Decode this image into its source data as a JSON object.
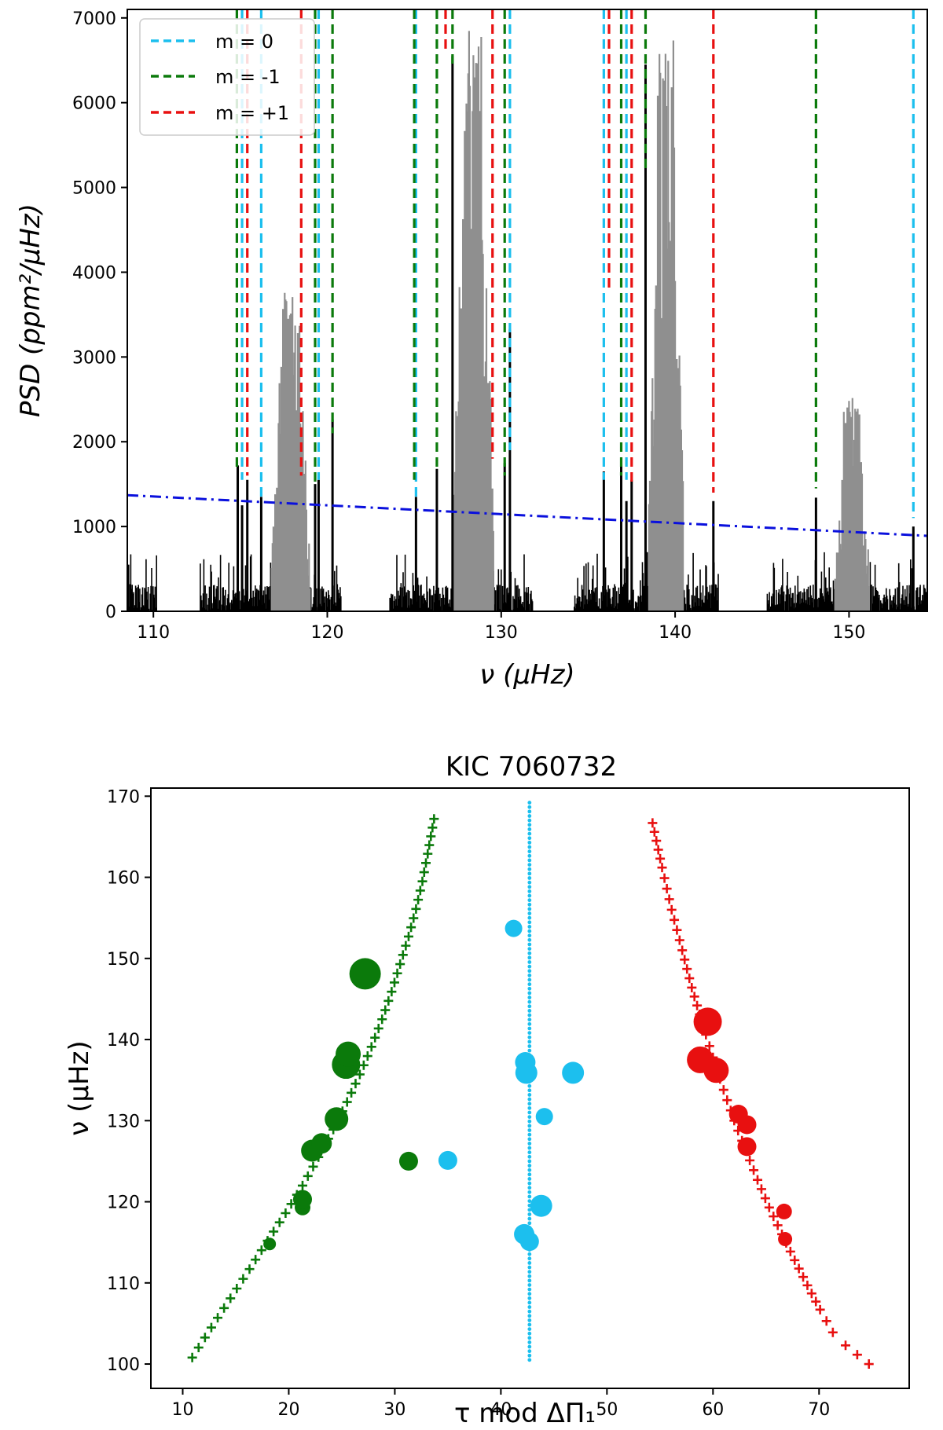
{
  "chart_data": [
    {
      "type": "line",
      "title": "",
      "xlabel": "ν (μHz)",
      "ylabel": "PSD (ppm²/μHz)",
      "xlim": [
        108.5,
        154.5
      ],
      "ylim": [
        0,
        7100
      ],
      "xticks": [
        110,
        120,
        130,
        140,
        150
      ],
      "yticks": [
        0,
        1000,
        2000,
        3000,
        4000,
        5000,
        6000,
        7000
      ],
      "legend": {
        "position": "top-left",
        "entries": [
          {
            "label": "m = 0",
            "color": "#1cbfee"
          },
          {
            "label": "m = -1",
            "color": "#0b7a0b"
          },
          {
            "label": "m = +1",
            "color": "#e81010"
          }
        ]
      },
      "threshold_line": {
        "color": "#0a10dd",
        "style": "dash-dot",
        "x": [
          108.5,
          154.5
        ],
        "y": [
          1370,
          890
        ]
      },
      "vertical_lines": {
        "m0": {
          "color": "#1cbfee",
          "x": [
            115.1,
            116.2,
            119.5,
            125.1,
            130.5,
            135.9,
            137.2,
            153.7
          ],
          "top": [
            7100,
            7100,
            7100,
            7100,
            7100,
            7100,
            7100,
            7100
          ],
          "bottom": [
            1550,
            1350,
            1550,
            1350,
            1900,
            1550,
            1550,
            1100
          ]
        },
        "m-1": {
          "color": "#0b7a0b",
          "x": [
            114.8,
            119.3,
            120.3,
            125.0,
            126.3,
            127.2,
            130.2,
            136.9,
            138.3,
            148.1
          ],
          "top": [
            7100,
            7100,
            7100,
            7100,
            7100,
            7100,
            7100,
            7100,
            7100,
            7100
          ],
          "bottom": [
            1700,
            1500,
            2100,
            1550,
            1700,
            6400,
            1600,
            1600,
            5200,
            1450
          ]
        },
        "m+1": {
          "color": "#e81010",
          "x": [
            115.4,
            118.5,
            126.8,
            129.5,
            136.2,
            137.5,
            142.2
          ],
          "top": [
            7100,
            7100,
            7100,
            7100,
            7100,
            7100,
            7100
          ],
          "bottom": [
            1600,
            1600,
            6600,
            1800,
            3800,
            1500,
            1400
          ]
        }
      },
      "spectrum_peaks": {
        "black": [
          {
            "x": 114.85,
            "y": 1720
          },
          {
            "x": 115.1,
            "y": 1250
          },
          {
            "x": 115.4,
            "y": 1550
          },
          {
            "x": 116.2,
            "y": 1350
          },
          {
            "x": 119.3,
            "y": 1500
          },
          {
            "x": 119.5,
            "y": 1550
          },
          {
            "x": 120.3,
            "y": 2260
          },
          {
            "x": 125.1,
            "y": 1350
          },
          {
            "x": 126.3,
            "y": 1680
          },
          {
            "x": 127.2,
            "y": 6550
          },
          {
            "x": 130.2,
            "y": 1750
          },
          {
            "x": 130.5,
            "y": 3330
          },
          {
            "x": 135.9,
            "y": 1650
          },
          {
            "x": 136.9,
            "y": 1720
          },
          {
            "x": 137.2,
            "y": 1300
          },
          {
            "x": 137.5,
            "y": 1550
          },
          {
            "x": 138.3,
            "y": 6450
          },
          {
            "x": 142.2,
            "y": 1300
          },
          {
            "x": 148.1,
            "y": 1340
          },
          {
            "x": 153.7,
            "y": 1000
          }
        ],
        "grey_clusters": [
          {
            "x0": 116.8,
            "x1": 119.0,
            "peak": 3850
          },
          {
            "x0": 127.2,
            "x1": 129.6,
            "peak": 6850
          },
          {
            "x0": 138.5,
            "x1": 140.5,
            "peak": 6850
          },
          {
            "x0": 149.2,
            "x1": 151.2,
            "peak": 2520
          }
        ]
      },
      "noise_segments": [
        [
          108.5,
          110.2
        ],
        [
          112.7,
          120.8
        ],
        [
          123.6,
          131.8
        ],
        [
          134.2,
          142.5
        ],
        [
          145.3,
          154.5
        ]
      ]
    },
    {
      "type": "scatter",
      "title": "KIC 7060732",
      "xlabel": "τ mod ΔΠ₁",
      "ylabel": "ν (μHz)",
      "xlim": [
        7,
        78.5
      ],
      "ylim": [
        97,
        171
      ],
      "xticks": [
        10,
        20,
        30,
        40,
        50,
        60,
        70
      ],
      "yticks": [
        100,
        110,
        120,
        130,
        140,
        150,
        160,
        170
      ],
      "model": {
        "m-1": {
          "color": "#0b7a0b",
          "marker": "plus",
          "points": [
            [
              10.9,
              100.8
            ],
            [
              12.7,
              104.5
            ],
            [
              14.5,
              108.1
            ],
            [
              16.3,
              111.7
            ],
            [
              18.0,
              115.2
            ],
            [
              19.7,
              118.6
            ],
            [
              21.3,
              122.0
            ],
            [
              22.8,
              125.5
            ],
            [
              24.2,
              128.9
            ],
            [
              25.5,
              132.3
            ],
            [
              26.7,
              135.7
            ],
            [
              27.8,
              139.1
            ],
            [
              28.8,
              142.5
            ],
            [
              29.7,
              145.9
            ],
            [
              30.5,
              149.3
            ],
            [
              31.3,
              152.7
            ],
            [
              32.0,
              156.1
            ],
            [
              32.6,
              159.5
            ],
            [
              33.1,
              162.9
            ],
            [
              33.7,
              167.2
            ]
          ]
        },
        "m0": {
          "color": "#1cbfee",
          "marker": "dot",
          "points": [
            [
              42.7,
              100.5
            ],
            [
              42.7,
              113.0
            ],
            [
              42.7,
              125.0
            ],
            [
              42.7,
              137.0
            ],
            [
              42.7,
              149.0
            ],
            [
              42.7,
              161.0
            ],
            [
              42.7,
              169.2
            ]
          ]
        },
        "m+1": {
          "color": "#e81010",
          "marker": "plus",
          "points": [
            [
              54.3,
              166.7
            ],
            [
              55.2,
              161.2
            ],
            [
              56.1,
              156.0
            ],
            [
              57.1,
              151.0
            ],
            [
              58.0,
              146.4
            ],
            [
              59.0,
              142.0
            ],
            [
              60.0,
              137.8
            ],
            [
              61.0,
              133.8
            ],
            [
              62.0,
              130.0
            ],
            [
              63.1,
              126.3
            ],
            [
              64.2,
              122.7
            ],
            [
              65.3,
              119.3
            ],
            [
              66.5,
              116.0
            ],
            [
              67.7,
              112.8
            ],
            [
              68.9,
              109.7
            ],
            [
              70.1,
              106.7
            ],
            [
              71.3,
              103.9
            ],
            [
              72.5,
              102.3
            ],
            [
              74.7,
              100.0
            ]
          ]
        }
      },
      "observed": {
        "m-1": {
          "color": "#0b7a0b",
          "points": [
            [
              18.2,
              114.8,
              8
            ],
            [
              21.3,
              119.3,
              10
            ],
            [
              21.3,
              120.3,
              12
            ],
            [
              22.2,
              126.3,
              14
            ],
            [
              23.1,
              127.2,
              13
            ],
            [
              24.5,
              130.2,
              15
            ],
            [
              25.4,
              136.9,
              18
            ],
            [
              25.6,
              138.2,
              16
            ],
            [
              27.2,
              148.1,
              20
            ],
            [
              31.3,
              125.0,
              12
            ]
          ]
        },
        "m0": {
          "color": "#1cbfee",
          "points": [
            [
              41.2,
              153.7,
              11
            ],
            [
              35.0,
              125.1,
              12
            ],
            [
              42.2,
              116.0,
              13
            ],
            [
              42.7,
              115.1,
              12
            ],
            [
              43.8,
              119.5,
              14
            ],
            [
              44.1,
              130.5,
              11
            ],
            [
              42.4,
              135.9,
              14
            ],
            [
              42.3,
              137.2,
              13
            ],
            [
              46.8,
              135.9,
              14
            ]
          ]
        },
        "m+1": {
          "color": "#e81010",
          "points": [
            [
              59.5,
              142.2,
              18
            ],
            [
              58.8,
              137.5,
              17
            ],
            [
              60.3,
              136.2,
              16
            ],
            [
              62.4,
              130.8,
              12
            ],
            [
              63.2,
              129.5,
              12
            ],
            [
              63.2,
              126.8,
              12
            ],
            [
              66.7,
              118.8,
              10
            ],
            [
              66.8,
              115.4,
              9
            ]
          ]
        }
      }
    }
  ]
}
